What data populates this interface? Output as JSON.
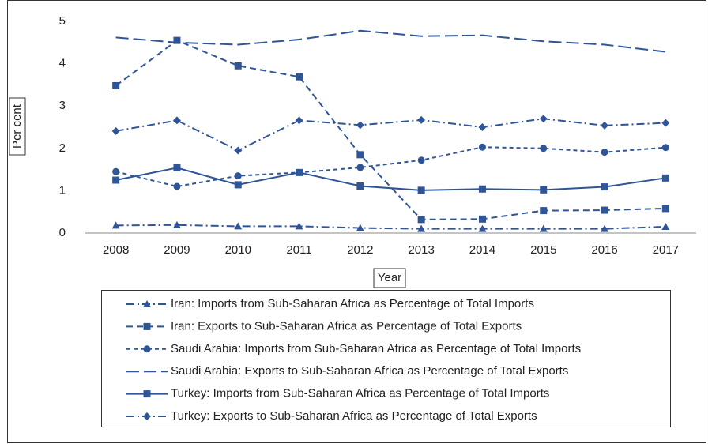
{
  "chart_data": {
    "type": "line",
    "x_label": "Year",
    "y_label": "Per cent",
    "categories": [
      "2008",
      "2009",
      "2010",
      "2011",
      "2012",
      "2013",
      "2014",
      "2015",
      "2016",
      "2017"
    ],
    "ylim": [
      0,
      5
    ],
    "yticks": [
      0,
      1,
      2,
      3,
      4,
      5
    ],
    "series": [
      {
        "name": "Iran: Imports from Sub-Saharan Africa as Percentage of Total Imports",
        "color": "#2f5597",
        "marker": "triangle",
        "dash": "dash-dot",
        "values": [
          0.18,
          0.19,
          0.16,
          0.16,
          0.12,
          0.1,
          0.1,
          0.1,
          0.1,
          0.15
        ]
      },
      {
        "name": "Iran: Exports to Sub-Saharan Africa as Percentage of Total Exports",
        "color": "#2f5597",
        "marker": "square",
        "dash": "dash",
        "values": [
          3.48,
          4.55,
          3.95,
          3.69,
          1.85,
          0.32,
          0.33,
          0.53,
          0.54,
          0.58
        ]
      },
      {
        "name": "Saudi Arabia: Imports from Sub-Saharan Africa as Percentage of Total Imports",
        "color": "#2f5597",
        "marker": "circle",
        "dash": "short-dash",
        "values": [
          1.45,
          1.1,
          1.35,
          1.43,
          1.55,
          1.72,
          2.03,
          2.0,
          1.91,
          2.02
        ]
      },
      {
        "name": "Saudi Arabia: Exports to Sub-Saharan Africa as Percentage of Total Exports",
        "color": "#2f5597",
        "marker": "none",
        "dash": "long-dash",
        "values": [
          4.62,
          4.5,
          4.45,
          4.57,
          4.78,
          4.65,
          4.67,
          4.53,
          4.45,
          4.28
        ]
      },
      {
        "name": "Turkey: Imports from Sub-Saharan Africa as Percentage of Total Imports",
        "color": "#2f5597",
        "marker": "square",
        "dash": "solid",
        "values": [
          1.25,
          1.54,
          1.14,
          1.43,
          1.11,
          1.01,
          1.04,
          1.02,
          1.09,
          1.3
        ]
      },
      {
        "name": "Turkey: Exports to Sub-Saharan Africa as Percentage of Total Exports",
        "color": "#2f5597",
        "marker": "diamond",
        "dash": "dash-dot",
        "values": [
          2.41,
          2.66,
          1.95,
          2.66,
          2.55,
          2.67,
          2.5,
          2.7,
          2.54,
          2.6
        ]
      }
    ]
  }
}
